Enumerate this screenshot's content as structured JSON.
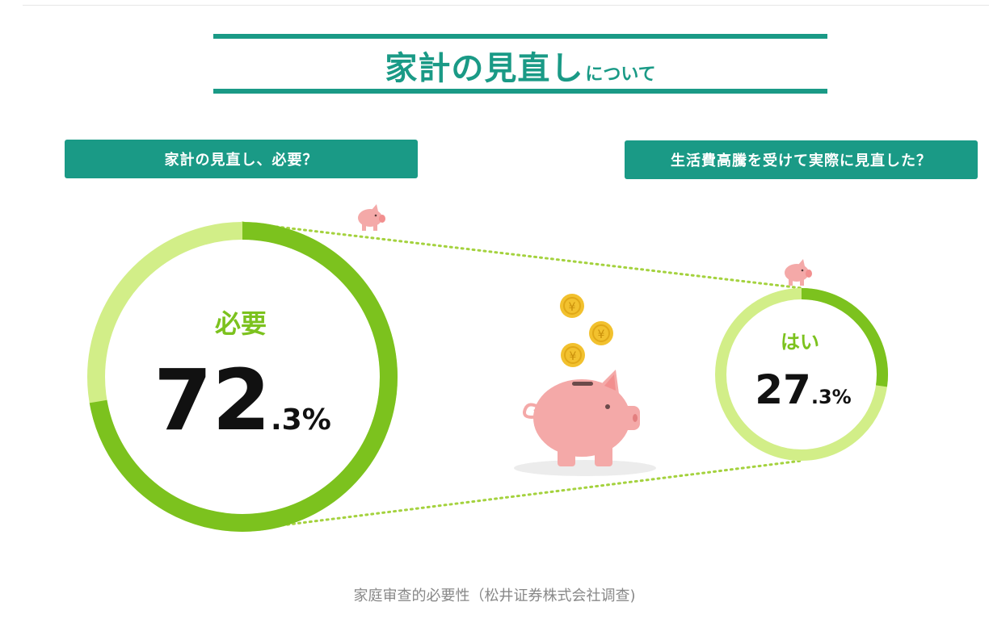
{
  "title": {
    "main": "家計の見直し",
    "sub": "について"
  },
  "questions": {
    "left": "家計の見直し、必要？",
    "right": "生活費高騰を受けて実際に見直した？"
  },
  "colors": {
    "teal": "#1a9a86",
    "dark_green": "#7cc21e",
    "light_green": "#d2ee88",
    "pig": "#f4a9a8",
    "coin": "#f2c12e"
  },
  "chart_data": [
    {
      "type": "pie",
      "label": "必要",
      "value": 72.3,
      "value_int": "72",
      "value_dec": ".3%",
      "colors": {
        "value": "#7cc21e",
        "rest": "#d2ee88"
      }
    },
    {
      "type": "pie",
      "label": "はい",
      "value": 27.3,
      "value_int": "27",
      "value_dec": ".3%",
      "colors": {
        "value": "#7cc21e",
        "rest": "#d2ee88"
      }
    }
  ],
  "caption": "家庭审查的必要性（松井证券株式会社调查)"
}
